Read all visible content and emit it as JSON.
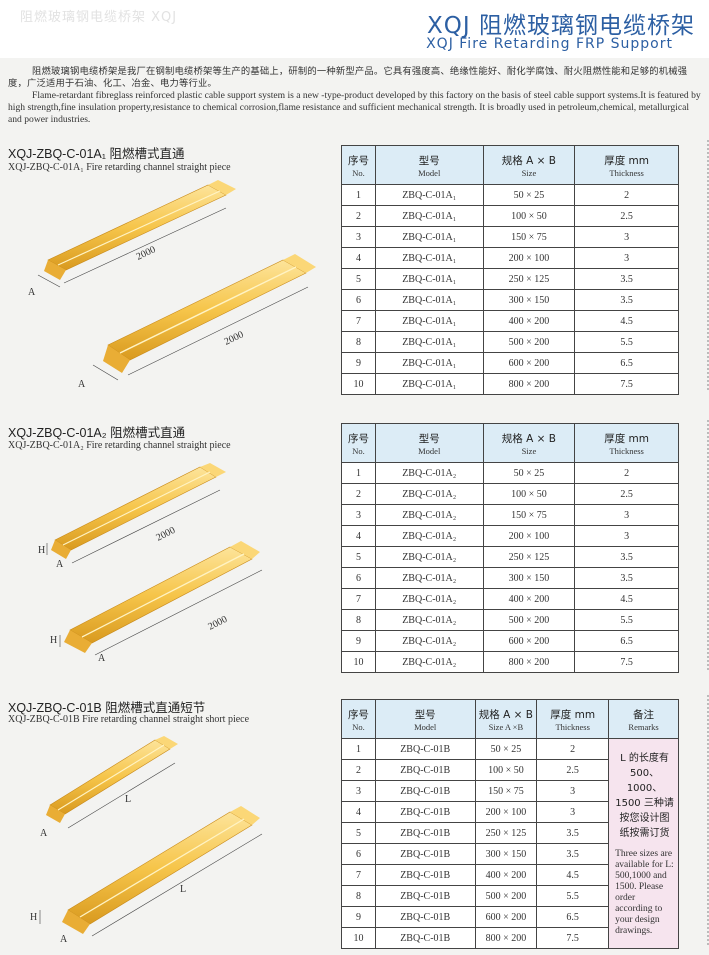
{
  "header": {
    "faint_text": "阻燃玻璃钢电缆桥架 XQJ",
    "title_cn": "XQJ 阻燃玻璃钢电缆桥架",
    "title_en": "XQJ Fire Retarding FRP Support"
  },
  "intro": {
    "cn": "阻燃玻璃钢电缆桥架是我厂在钢制电缆桥架等生产的基础上，研制的一种新型产品。它具有强度高、绝缘性能好、耐化学腐蚀、耐火阻燃性能和足够的机械强度，广泛适用于石油、化工、冶金、电力等行业。",
    "en": "Flame-retardant fibreglass reinforced plastic cable support system is a new -type-product developed by this factory on the basis of steel cable support systems.It is featured by high strength,fine insulation property,resistance to chemical corrosion,flame resistance and sufficient mechanical strength. It is broadly used in petroleum,chemical, metallurgical and power industries."
  },
  "colors": {
    "title_blue": "#2c5fa3",
    "header_fill": "#dcecf6",
    "remarks_fill": "#f6e4ee",
    "tray_yellow": "#f6c54a",
    "tray_light": "#fde49a",
    "tray_dark": "#d99a1f"
  },
  "headers": {
    "no_cn": "序号",
    "no_en": "No.",
    "model_cn": "型号",
    "model_en": "Model",
    "size_cn": "规格 A × B",
    "size_en": "Size",
    "size_cn_c": "规格 A × B",
    "size_en_c": "Size A ×B",
    "thick_cn": "厚度 mm",
    "thick_en": "Thickness",
    "remarks_cn": "备注",
    "remarks_en": "Remarks"
  },
  "sections": [
    {
      "title": "XQJ-ZBQ-C-01A₁ 阻燃槽式直通",
      "subtitle": "XQJ-ZBQ-C-01A₁ Fire retarding channel straight piece",
      "diagram_labels": {
        "length1": "2000",
        "length2": "2000",
        "a1": "A",
        "a2": "A"
      },
      "rows": [
        {
          "no": "1",
          "model": "ZBQ-C-01A₁",
          "size": "50 × 25",
          "thick": "2"
        },
        {
          "no": "2",
          "model": "ZBQ-C-01A₁",
          "size": "100 × 50",
          "thick": "2.5"
        },
        {
          "no": "3",
          "model": "ZBQ-C-01A₁",
          "size": "150 × 75",
          "thick": "3"
        },
        {
          "no": "4",
          "model": "ZBQ-C-01A₁",
          "size": "200 × 100",
          "thick": "3"
        },
        {
          "no": "5",
          "model": "ZBQ-C-01A₁",
          "size": "250 × 125",
          "thick": "3.5"
        },
        {
          "no": "6",
          "model": "ZBQ-C-01A₁",
          "size": "300 × 150",
          "thick": "3.5"
        },
        {
          "no": "7",
          "model": "ZBQ-C-01A₁",
          "size": "400 × 200",
          "thick": "4.5"
        },
        {
          "no": "8",
          "model": "ZBQ-C-01A₁",
          "size": "500 × 200",
          "thick": "5.5"
        },
        {
          "no": "9",
          "model": "ZBQ-C-01A₁",
          "size": "600 × 200",
          "thick": "6.5"
        },
        {
          "no": "10",
          "model": "ZBQ-C-01A₁",
          "size": "800 × 200",
          "thick": "7.5"
        }
      ]
    },
    {
      "title": "XQJ-ZBQ-C-01A₂ 阻燃槽式直通",
      "subtitle": "XQJ-ZBQ-C-01A₂ Fire retarding channel straight piece",
      "diagram_labels": {
        "length1": "2000",
        "length2": "2000",
        "a1": "A",
        "a2": "A",
        "h1": "H",
        "h2": "H"
      },
      "rows": [
        {
          "no": "1",
          "model": "ZBQ-C-01A₂",
          "size": "50 × 25",
          "thick": "2"
        },
        {
          "no": "2",
          "model": "ZBQ-C-01A₂",
          "size": "100 × 50",
          "thick": "2.5"
        },
        {
          "no": "3",
          "model": "ZBQ-C-01A₂",
          "size": "150 × 75",
          "thick": "3"
        },
        {
          "no": "4",
          "model": "ZBQ-C-01A₂",
          "size": "200 × 100",
          "thick": "3"
        },
        {
          "no": "5",
          "model": "ZBQ-C-01A₂",
          "size": "250 × 125",
          "thick": "3.5"
        },
        {
          "no": "6",
          "model": "ZBQ-C-01A₂",
          "size": "300 × 150",
          "thick": "3.5"
        },
        {
          "no": "7",
          "model": "ZBQ-C-01A₂",
          "size": "400 × 200",
          "thick": "4.5"
        },
        {
          "no": "8",
          "model": "ZBQ-C-01A₂",
          "size": "500 × 200",
          "thick": "5.5"
        },
        {
          "no": "9",
          "model": "ZBQ-C-01A₂",
          "size": "600 × 200",
          "thick": "6.5"
        },
        {
          "no": "10",
          "model": "ZBQ-C-01A₂",
          "size": "800 × 200",
          "thick": "7.5"
        }
      ]
    },
    {
      "title": "XQJ-ZBQ-C-01B 阻燃槽式直通短节",
      "subtitle": "XQJ-ZBQ-C-01B Fire retarding channel straight short piece",
      "diagram_labels": {
        "length1": "L",
        "length2": "L",
        "a1": "A",
        "a2": "A",
        "h2": "H"
      },
      "remarks_cn": "L 的长度有 500、1000、1500 三种请按您设计图纸按需订货",
      "remarks_en": "Three sizes are available for L: 500,1000 and 1500. Please order according to your design drawings.",
      "rows": [
        {
          "no": "1",
          "model": "ZBQ-C-01B",
          "size": "50 × 25",
          "thick": "2"
        },
        {
          "no": "2",
          "model": "ZBQ-C-01B",
          "size": "100 × 50",
          "thick": "2.5"
        },
        {
          "no": "3",
          "model": "ZBQ-C-01B",
          "size": "150 × 75",
          "thick": "3"
        },
        {
          "no": "4",
          "model": "ZBQ-C-01B",
          "size": "200 × 100",
          "thick": "3"
        },
        {
          "no": "5",
          "model": "ZBQ-C-01B",
          "size": "250 × 125",
          "thick": "3.5"
        },
        {
          "no": "6",
          "model": "ZBQ-C-01B",
          "size": "300 × 150",
          "thick": "3.5"
        },
        {
          "no": "7",
          "model": "ZBQ-C-01B",
          "size": "400 × 200",
          "thick": "4.5"
        },
        {
          "no": "8",
          "model": "ZBQ-C-01B",
          "size": "500 × 200",
          "thick": "5.5"
        },
        {
          "no": "9",
          "model": "ZBQ-C-01B",
          "size": "600 × 200",
          "thick": "6.5"
        },
        {
          "no": "10",
          "model": "ZBQ-C-01B",
          "size": "800 × 200",
          "thick": "7.5"
        }
      ]
    }
  ]
}
